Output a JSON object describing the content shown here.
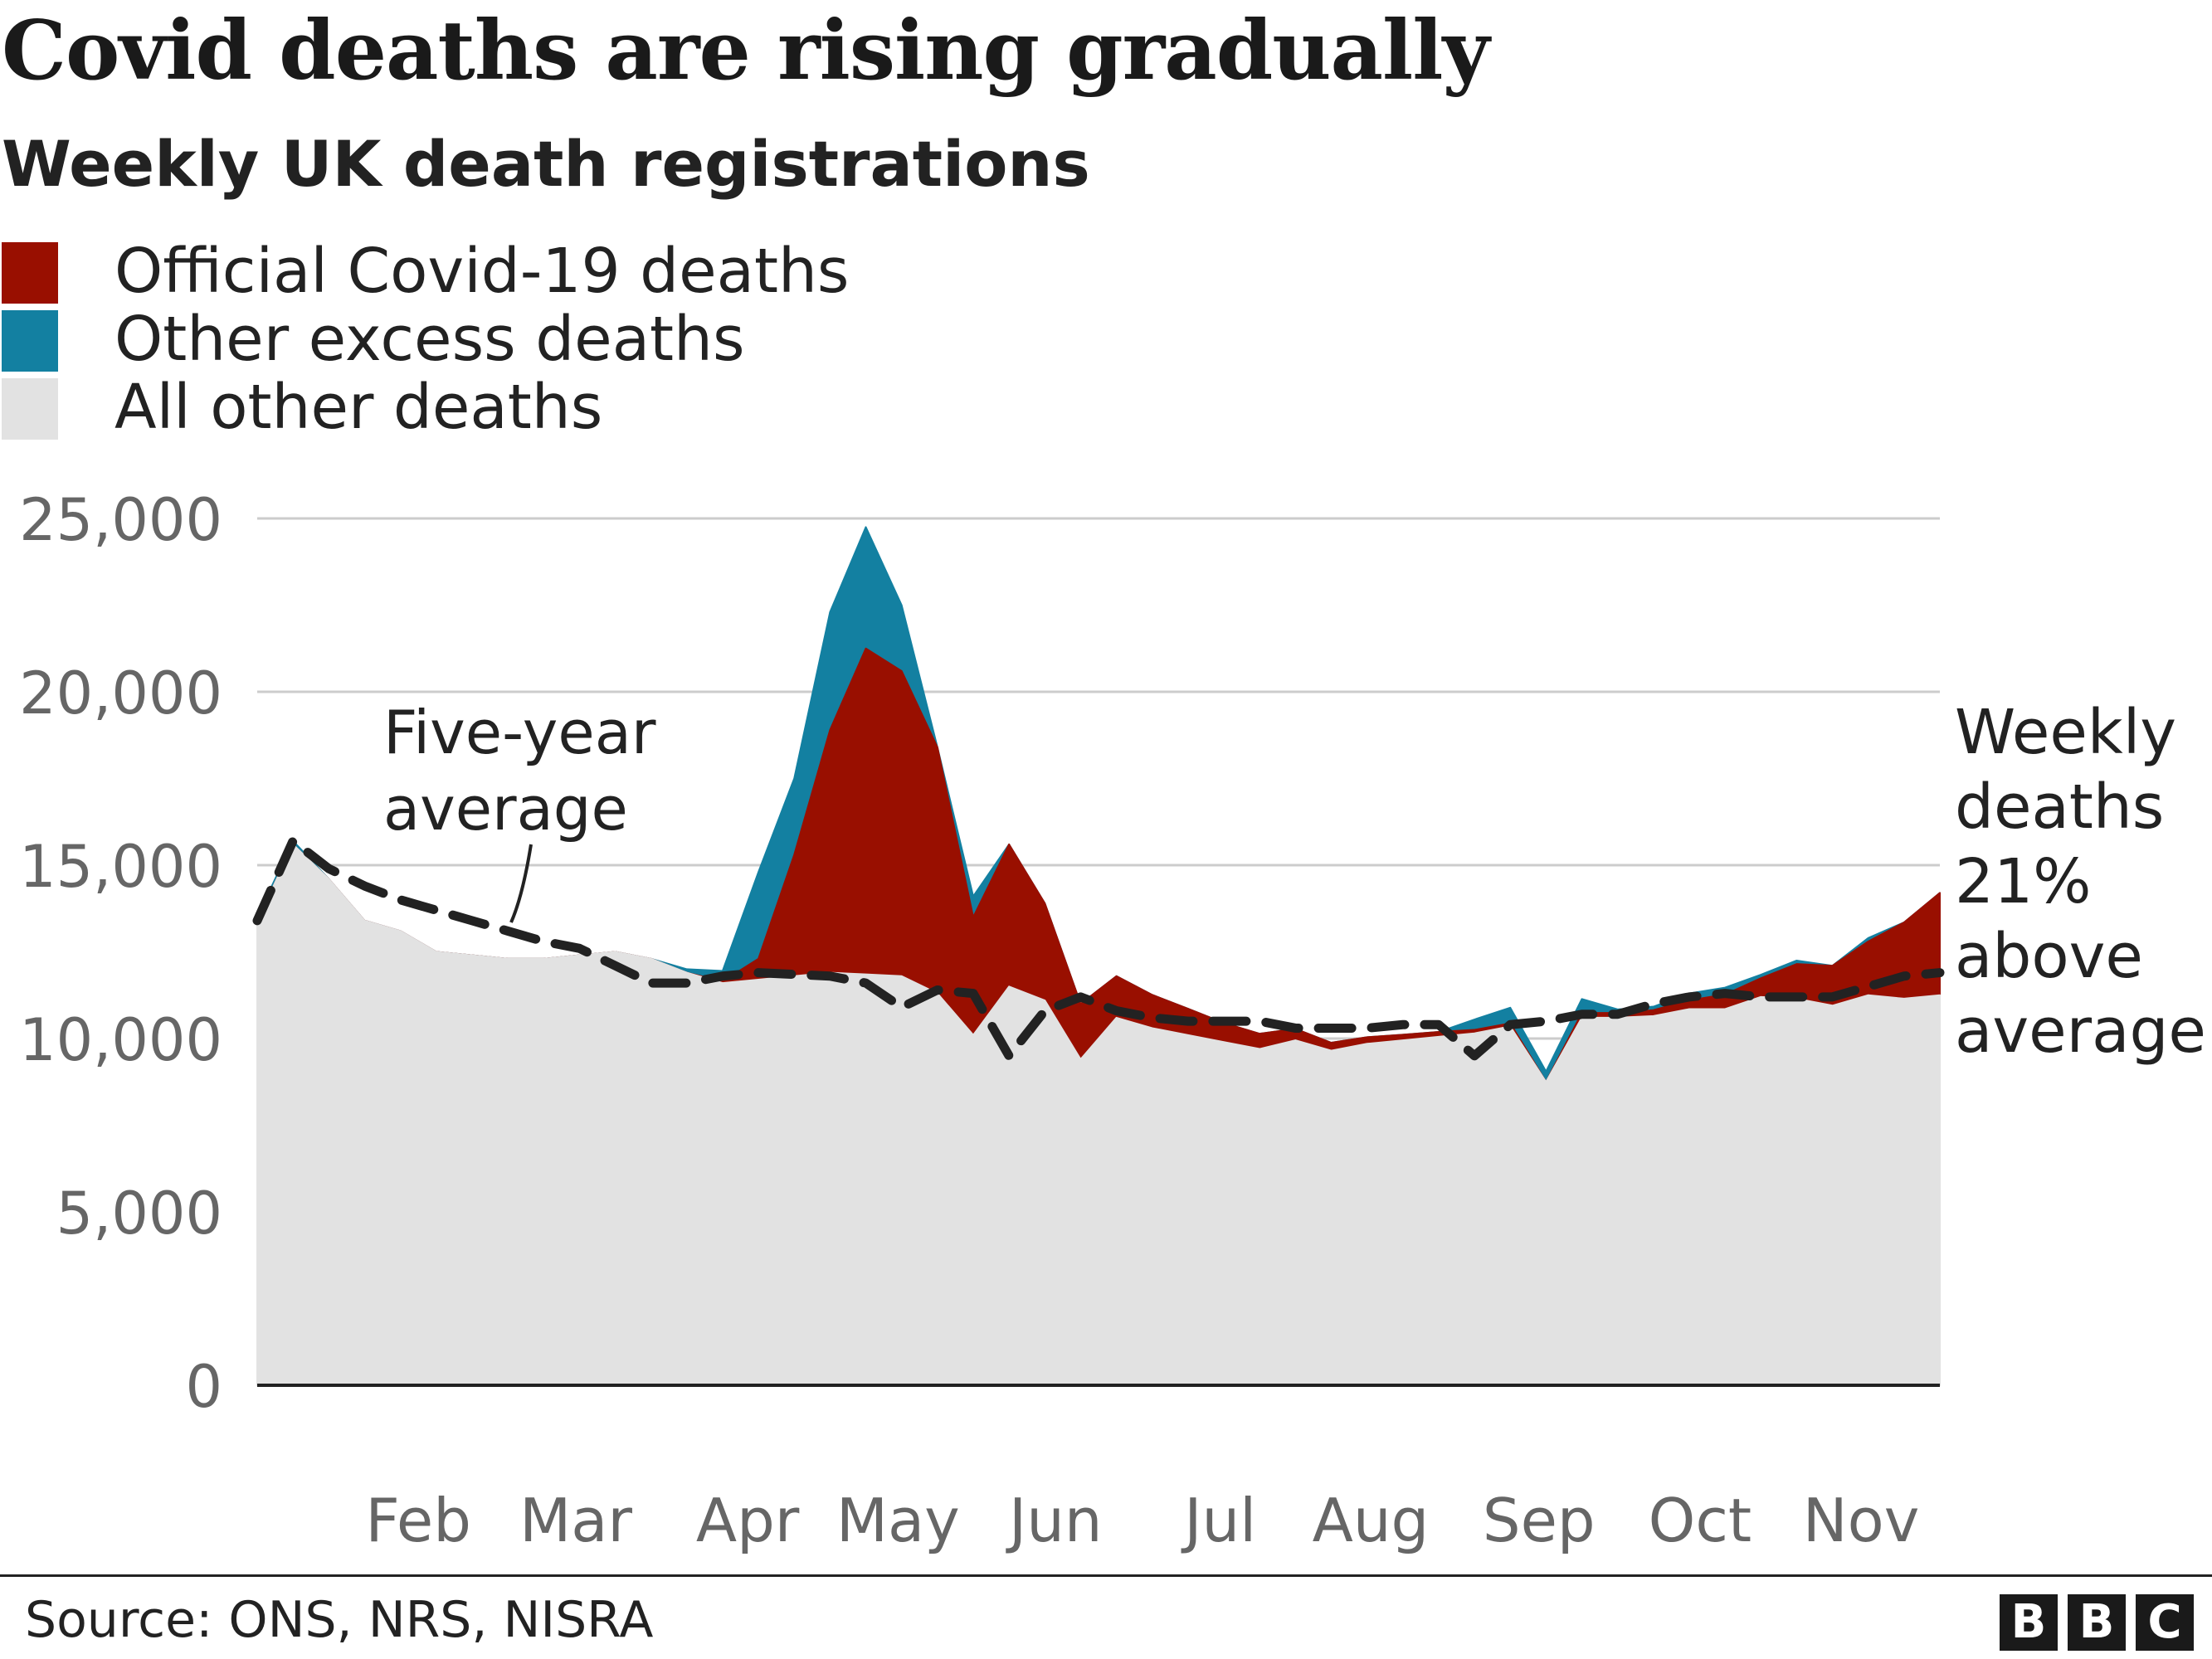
{
  "chart_data": {
    "type": "area",
    "title": "Covid deaths are rising gradually",
    "subtitle": "Weekly UK death registrations",
    "xlabel": "",
    "ylabel": "",
    "ylim": [
      0,
      25000
    ],
    "yticks": [
      0,
      5000,
      10000,
      15000,
      20000,
      25000
    ],
    "ytick_labels": [
      "0",
      "5,000",
      "10,000",
      "15,000",
      "20,000",
      "25,000"
    ],
    "x_week_range": [
      1,
      48
    ],
    "month_ticks": [
      {
        "label": "Feb",
        "week": 5.5
      },
      {
        "label": "Mar",
        "week": 9.9
      },
      {
        "label": "Apr",
        "week": 14.7
      },
      {
        "label": "May",
        "week": 18.9
      },
      {
        "label": "Jun",
        "week": 23.3
      },
      {
        "label": "Jul",
        "week": 27.9
      },
      {
        "label": "Aug",
        "week": 32.1
      },
      {
        "label": "Sep",
        "week": 36.8
      },
      {
        "label": "Oct",
        "week": 41.3
      },
      {
        "label": "Nov",
        "week": 45.8
      }
    ],
    "grid": true,
    "legend_position": "top-left",
    "series": [
      {
        "name": "Official Covid-19 deaths",
        "color": "#990f00",
        "values": [
          0,
          0,
          0,
          0,
          0,
          0,
          0,
          0,
          0,
          0,
          0,
          0,
          0,
          50,
          600,
          3500,
          7000,
          9400,
          8800,
          7100,
          3400,
          4100,
          2800,
          1600,
          1200,
          960,
          760,
          550,
          440,
          330,
          230,
          190,
          160,
          140,
          100,
          90,
          0,
          140,
          140,
          170,
          250,
          420,
          540,
          1000,
          1150,
          1550,
          2200,
          2950
        ]
      },
      {
        "name": "Other excess deaths",
        "color": "#1380a1",
        "values": [
          100,
          100,
          0,
          0,
          0,
          0,
          0,
          0,
          0,
          0,
          0,
          0,
          100,
          300,
          2500,
          2200,
          3400,
          3500,
          1900,
          0,
          600,
          0,
          0,
          0,
          0,
          0,
          0,
          0,
          0,
          0,
          0,
          0,
          0,
          0,
          300,
          450,
          300,
          400,
          100,
          100,
          200,
          200,
          100,
          100,
          0,
          100,
          0,
          0
        ]
      },
      {
        "name": "All other deaths",
        "color": "#e2e2e2",
        "values": [
          13400,
          15600,
          14600,
          13400,
          13100,
          12500,
          12400,
          12300,
          12300,
          12400,
          12500,
          12300,
          11900,
          11600,
          11700,
          11800,
          11900,
          11850,
          11800,
          11300,
          10100,
          11500,
          11100,
          9400,
          10600,
          10300,
          10100,
          9900,
          9700,
          9950,
          9650,
          9850,
          9950,
          10050,
          10150,
          10350,
          8750,
          10600,
          10600,
          10650,
          10850,
          10850,
          11200,
          11150,
          10950,
          11250,
          11150,
          11250
        ]
      }
    ],
    "average_line": {
      "label": "Five-year average",
      "values": [
        13400,
        15700,
        14900,
        14400,
        14000,
        13700,
        13400,
        13100,
        12800,
        12600,
        12100,
        11600,
        11600,
        11800,
        11900,
        11850,
        11800,
        11600,
        10900,
        11400,
        11300,
        9500,
        10800,
        11200,
        10800,
        10600,
        10500,
        10500,
        10500,
        10300,
        10300,
        10300,
        10400,
        10400,
        9500,
        10400,
        10500,
        10700,
        10700,
        11000,
        11200,
        11300,
        11200,
        11200,
        11200,
        11500,
        11800,
        11900
      ]
    },
    "annotation": [
      "Weekly",
      "deaths",
      "21%",
      "above",
      "average"
    ]
  },
  "footer": {
    "source": "Source: ONS, NRS, NISRA",
    "logo": [
      "B",
      "B",
      "C"
    ]
  }
}
